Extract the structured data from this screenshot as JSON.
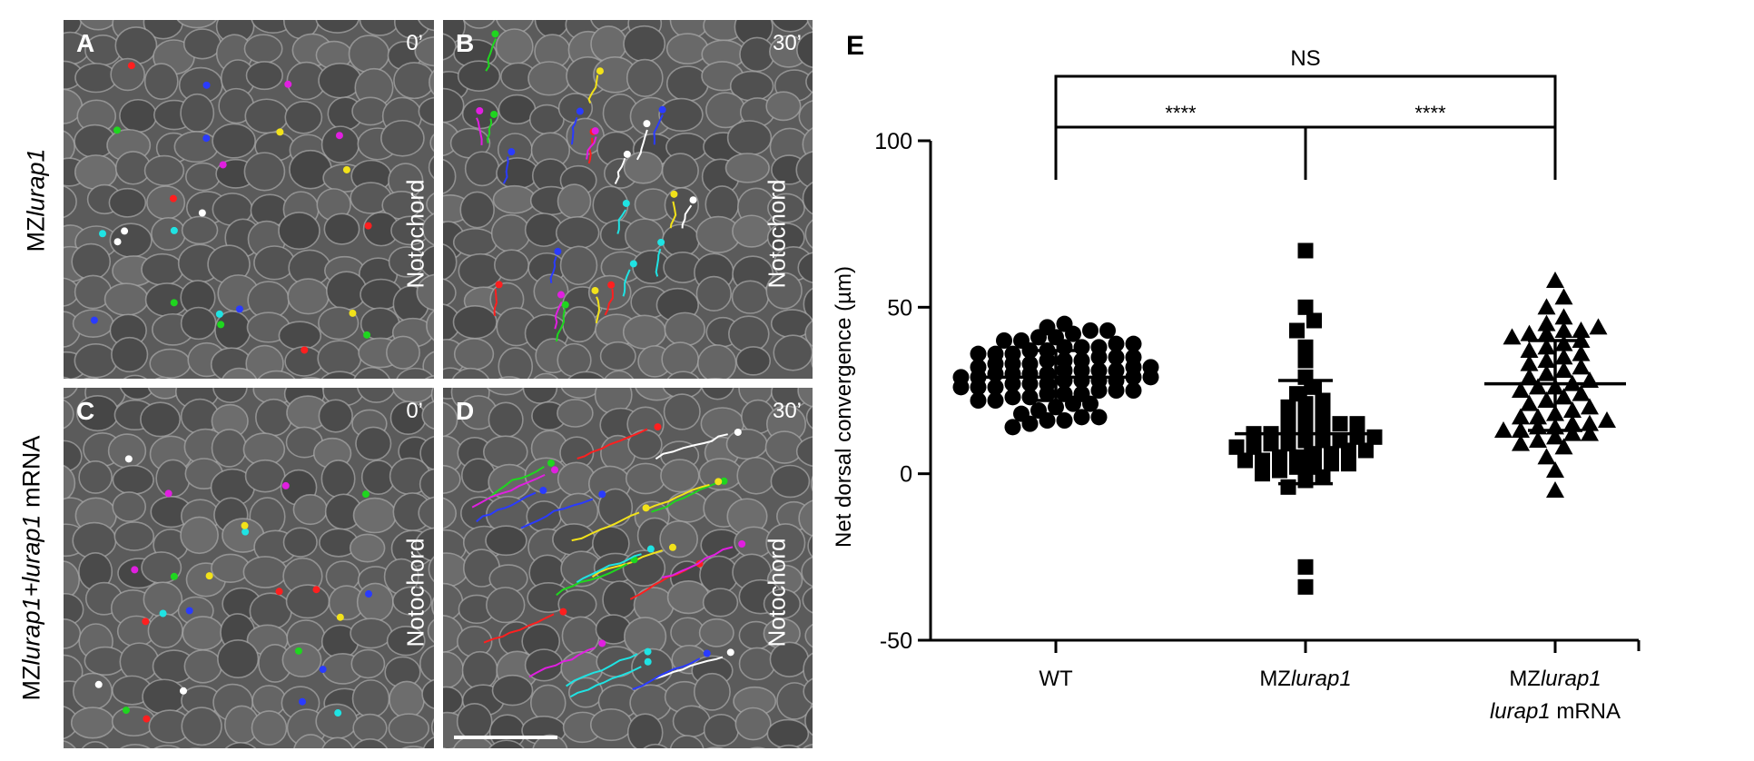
{
  "panels": [
    {
      "letter": "A",
      "time": "0’",
      "notochord": "Notochord"
    },
    {
      "letter": "B",
      "time": "30’",
      "notochord": "Notochord"
    },
    {
      "letter": "C",
      "time": "0’",
      "notochord": "Notochord"
    },
    {
      "letter": "D",
      "time": "30’",
      "notochord": "Notochord"
    }
  ],
  "row_labels": {
    "top": {
      "prefix": "MZ",
      "italic": "lurap1",
      "suffix": ""
    },
    "bottom": {
      "prefix": "MZ",
      "italic": "lurap1+lurap1",
      "suffix": " mRNA"
    }
  },
  "track_colors": [
    "#2a3bff",
    "#1fd61f",
    "#ff1f1f",
    "#1fe3e3",
    "#e01fe0",
    "#f2e21a",
    "#ffffff"
  ],
  "chart_data": {
    "type": "scatter",
    "panel_letter": "E",
    "ylabel": "Net dorsal convergence (µm)",
    "ylim": [
      -50,
      100
    ],
    "yticks": [
      -50,
      0,
      50,
      100
    ],
    "categories": [
      {
        "line1_prefix": "WT",
        "line1_italic": "",
        "line2_italic": "",
        "line2_suffix": ""
      },
      {
        "line1_prefix": "MZ",
        "line1_italic": "lurap1",
        "line2_italic": "",
        "line2_suffix": ""
      },
      {
        "line1_prefix": "MZ",
        "line1_italic": "lurap1",
        "line2_italic": "lurap1",
        "line2_suffix": " mRNA"
      }
    ],
    "series": [
      {
        "marker": "circle",
        "mean": 29,
        "sd_low": 22,
        "sd_high": 37,
        "values": [
          45,
          44,
          43,
          43,
          42,
          41,
          41,
          40,
          40,
          39,
          39,
          38,
          38,
          38,
          37,
          37,
          36,
          36,
          36,
          35,
          35,
          35,
          34,
          34,
          34,
          33,
          33,
          33,
          32,
          32,
          32,
          31,
          31,
          31,
          31,
          30,
          30,
          30,
          30,
          29,
          29,
          29,
          29,
          28,
          28,
          28,
          28,
          27,
          27,
          27,
          26,
          26,
          26,
          25,
          25,
          25,
          24,
          24,
          24,
          23,
          23,
          22,
          22,
          21,
          21,
          20,
          19,
          18,
          17,
          17,
          16,
          16,
          15,
          14
        ]
      },
      {
        "marker": "square",
        "mean": 12,
        "sd_low": -3,
        "sd_high": 28,
        "values": [
          67,
          50,
          46,
          43,
          38,
          34,
          29,
          26,
          24,
          22,
          21,
          20,
          18,
          17,
          16,
          15,
          15,
          14,
          13,
          13,
          12,
          12,
          11,
          11,
          10,
          10,
          10,
          9,
          9,
          8,
          8,
          7,
          7,
          6,
          6,
          5,
          5,
          4,
          4,
          3,
          3,
          2,
          2,
          1,
          0,
          -1,
          -2,
          -4,
          -28,
          -34
        ]
      },
      {
        "marker": "triangle",
        "mean": 27,
        "sd_low": 13,
        "sd_high": 40,
        "values": [
          58,
          53,
          50,
          47,
          45,
          44,
          43,
          43,
          42,
          42,
          41,
          40,
          39,
          38,
          37,
          36,
          35,
          34,
          33,
          32,
          31,
          30,
          29,
          28,
          27,
          26,
          26,
          25,
          24,
          23,
          22,
          21,
          20,
          19,
          18,
          17,
          17,
          16,
          15,
          15,
          14,
          14,
          13,
          13,
          12,
          12,
          11,
          10,
          9,
          8,
          5,
          1,
          -5
        ]
      }
    ],
    "comparisons": [
      {
        "from": 0,
        "to": 2,
        "label": "NS",
        "level": "top"
      },
      {
        "from": 0,
        "to": 1,
        "label": "****",
        "level": "lower"
      },
      {
        "from": 1,
        "to": 2,
        "label": "****",
        "level": "lower"
      }
    ]
  }
}
